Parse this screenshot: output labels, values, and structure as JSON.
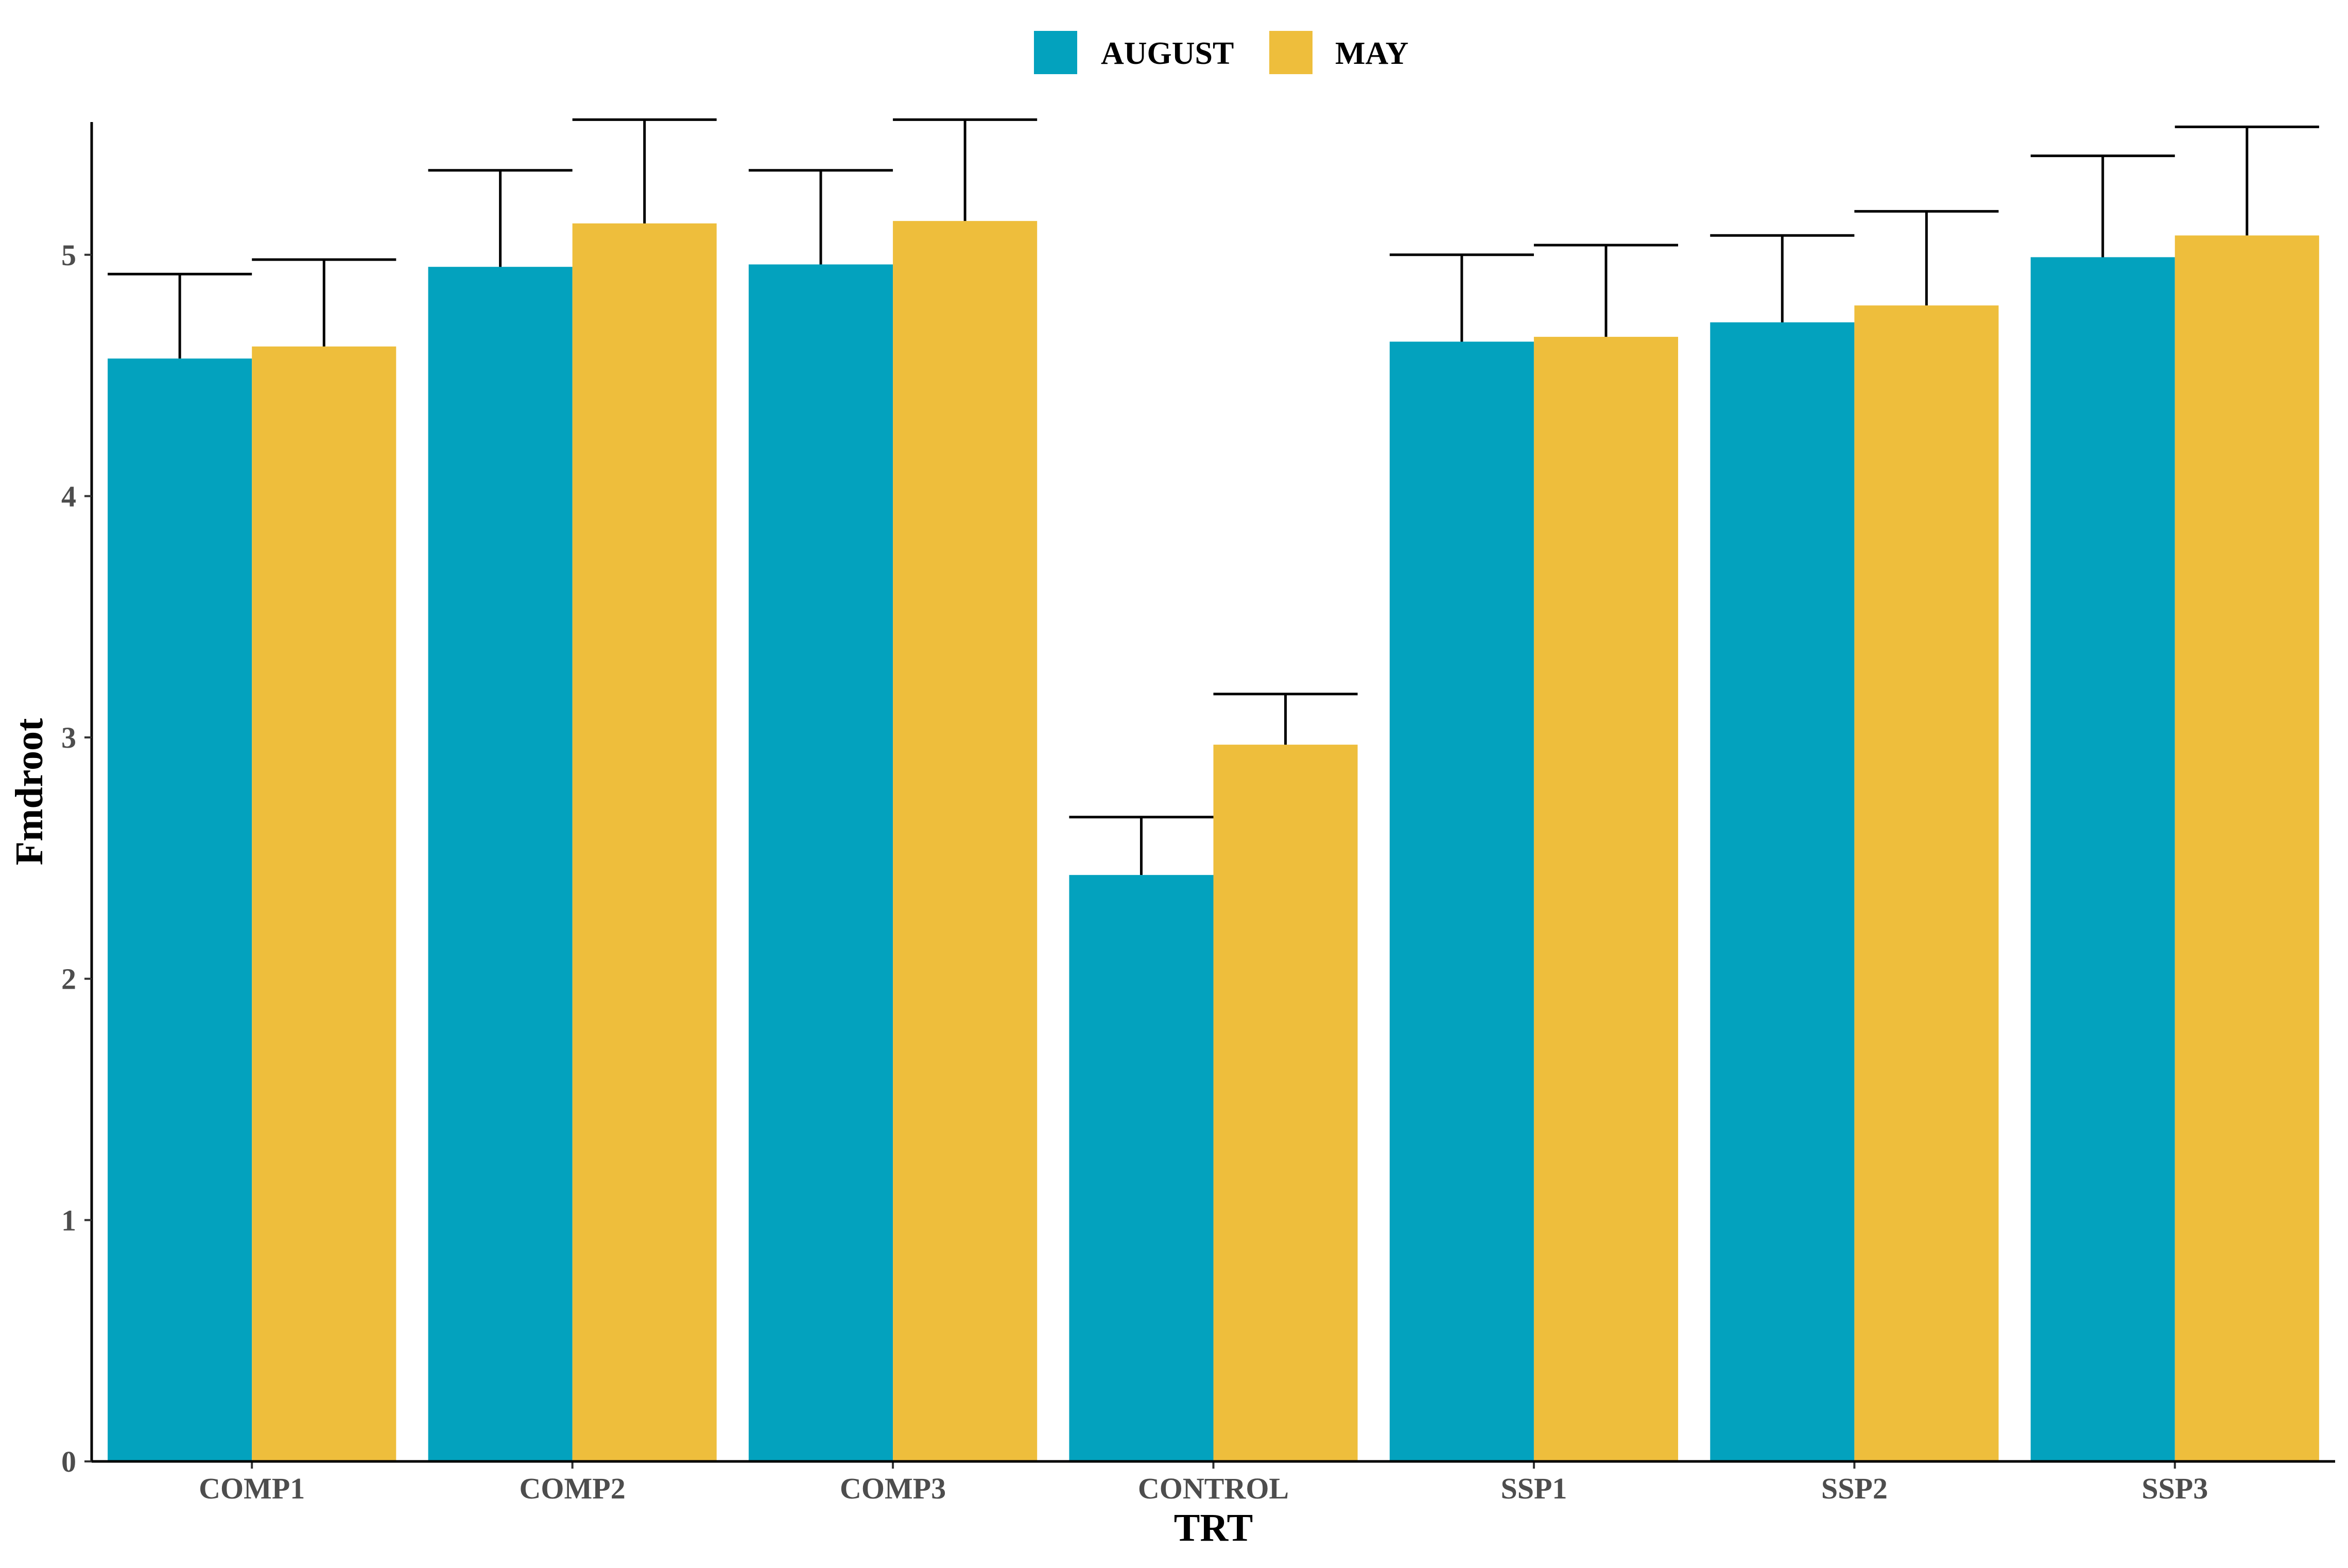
{
  "chart_data": {
    "type": "bar",
    "title": "",
    "xlabel": "TRT",
    "ylabel": "Fmdroot",
    "categories": [
      "COMP1",
      "COMP2",
      "COMP3",
      "CONTROL",
      "SSP1",
      "SSP2",
      "SSP3"
    ],
    "series": [
      {
        "name": "AUGUST",
        "color": "#03A2BE",
        "values": [
          4.57,
          4.95,
          4.96,
          2.43,
          4.64,
          4.72,
          4.99
        ],
        "error_upper": [
          4.92,
          5.35,
          5.35,
          2.67,
          5.0,
          5.08,
          5.41
        ]
      },
      {
        "name": "MAY",
        "color": "#EEBE3C",
        "values": [
          4.62,
          5.13,
          5.14,
          2.97,
          4.66,
          4.79,
          5.08
        ],
        "error_upper": [
          4.98,
          5.56,
          5.56,
          3.18,
          5.04,
          5.18,
          5.53
        ]
      }
    ],
    "ylim": [
      0,
      5.55
    ],
    "yticks": [
      "0",
      "1",
      "2",
      "3",
      "4",
      "5"
    ],
    "grid": false,
    "legend_position": "top"
  }
}
